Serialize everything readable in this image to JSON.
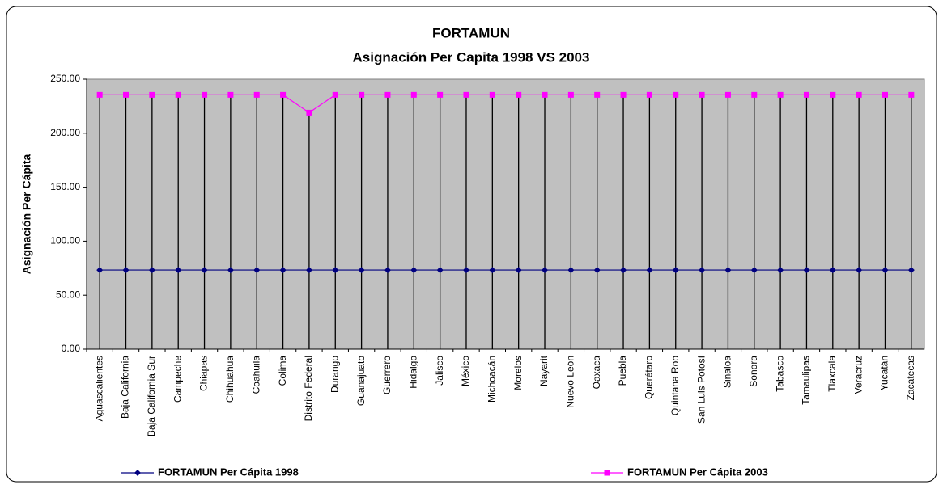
{
  "chart_data": {
    "type": "line",
    "title": "FORTAMUN",
    "subtitle": "Asignación Per Capita 1998 VS 2003",
    "y_label": "Asignación Per Cápita",
    "categories": [
      "Aguascalientes",
      "Baja California",
      "Baja California Sur",
      "Campeche",
      "Chiapas",
      "Chihuahua",
      "Coahuila",
      "Colima",
      "Distrito Federal",
      "Durango",
      "Guanajuato",
      "Guerrero",
      "Hidalgo",
      "Jalisco",
      "México",
      "Michoacán",
      "Morelos",
      "Nayarit",
      "Nuevo León",
      "Oaxaca",
      "Puebla",
      "Querétaro",
      "Quintana Roo",
      "San Luis Potosí",
      "Sinaloa",
      "Sonora",
      "Tabasco",
      "Tamaulipas",
      "Tlaxcala",
      "Veracruz",
      "Yucatán",
      "Zacatecas"
    ],
    "series": [
      {
        "name": "FORTAMUN  Per Cápita 1998",
        "color": "#000080",
        "marker": "diamond",
        "values": [
          73.3,
          73.3,
          73.3,
          73.3,
          73.3,
          73.3,
          73.3,
          73.3,
          73.3,
          73.3,
          73.3,
          73.3,
          73.3,
          73.3,
          73.3,
          73.3,
          73.3,
          73.3,
          73.3,
          73.3,
          73.3,
          73.3,
          73.3,
          73.3,
          73.3,
          73.3,
          73.3,
          73.3,
          73.3,
          73.3,
          73.3,
          73.3
        ]
      },
      {
        "name": "FORTAMUN  Per Cápita 2003",
        "color": "#ff00ff",
        "marker": "square",
        "values": [
          235.5,
          235.5,
          235.5,
          235.5,
          235.5,
          235.5,
          235.5,
          235.5,
          219,
          235.5,
          235.5,
          235.5,
          235.5,
          235.5,
          235.5,
          235.5,
          235.5,
          235.5,
          235.5,
          235.5,
          235.5,
          235.5,
          235.5,
          235.5,
          235.5,
          235.5,
          235.5,
          235.5,
          235.5,
          235.5,
          235.5,
          235.5
        ]
      }
    ],
    "ylim": [
      0,
      250
    ],
    "yticks": [
      {
        "value": 0,
        "label": "0.00"
      },
      {
        "value": 50,
        "label": "50.00"
      },
      {
        "value": 100,
        "label": "100.00"
      },
      {
        "value": 150,
        "label": "150.00"
      },
      {
        "value": 200,
        "label": "200.00"
      },
      {
        "value": 250,
        "label": "250.00"
      }
    ],
    "plot_background": "#c0c0c0",
    "drop_lines": true,
    "legend": "bottom"
  }
}
